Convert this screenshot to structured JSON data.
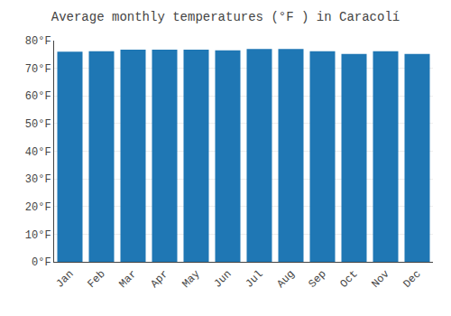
{
  "chart_data": {
    "type": "bar",
    "title": "Average monthly temperatures (°F ) in Caracolí",
    "categories": [
      "Jan",
      "Feb",
      "Mar",
      "Apr",
      "May",
      "Jun",
      "Jul",
      "Aug",
      "Sep",
      "Oct",
      "Nov",
      "Dec"
    ],
    "values": [
      76.0,
      76.2,
      76.7,
      76.7,
      76.7,
      76.5,
      77.0,
      77.0,
      76.2,
      75.2,
      76.2,
      75.2
    ],
    "ylim": [
      0,
      80
    ],
    "yticks": [
      {
        "value": 0,
        "label": "0°F"
      },
      {
        "value": 10,
        "label": "10°F"
      },
      {
        "value": 20,
        "label": "20°F"
      },
      {
        "value": 30,
        "label": "30°F"
      },
      {
        "value": 40,
        "label": "40°F"
      },
      {
        "value": 50,
        "label": "50°F"
      },
      {
        "value": 60,
        "label": "60°F"
      },
      {
        "value": 70,
        "label": "70°F"
      },
      {
        "value": 80,
        "label": "80°F"
      }
    ],
    "grid": true
  }
}
